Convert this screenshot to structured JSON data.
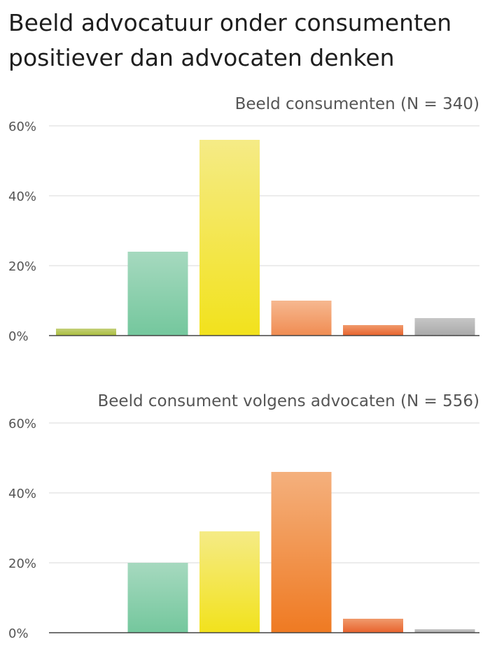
{
  "title": "Beeld advocatuur onder consumenten positiever dan advocaten denken",
  "chart_data": [
    {
      "type": "bar",
      "title": "Beeld consumenten (N = 340)",
      "ylim": [
        0,
        60
      ],
      "yticks": [
        "0%",
        "20%",
        "40%",
        "60%"
      ],
      "ytick_values": [
        0,
        20,
        40,
        60
      ],
      "values": [
        2,
        24,
        56,
        10,
        3,
        5
      ],
      "gradients": [
        [
          "#c4d07a",
          "#a9bd3c"
        ],
        [
          "#a6d9bf",
          "#74c79d"
        ],
        [
          "#f5eb86",
          "#f2e21c"
        ],
        [
          "#f6b890",
          "#f08c52"
        ],
        [
          "#f09a6c",
          "#e8622c"
        ],
        [
          "#c6c6c6",
          "#a9a9a9"
        ]
      ]
    },
    {
      "type": "bar",
      "title": "Beeld consument volgens advocaten (N = 556)",
      "ylim": [
        0,
        60
      ],
      "yticks": [
        "0%",
        "20%",
        "40%",
        "60%"
      ],
      "ytick_values": [
        0,
        20,
        40,
        60
      ],
      "values": [
        0,
        20,
        29,
        46,
        4,
        1
      ],
      "gradients": [
        [
          "#c4d07a",
          "#a9bd3c"
        ],
        [
          "#a6d9bf",
          "#74c79d"
        ],
        [
          "#f5eb86",
          "#f2e21c"
        ],
        [
          "#f4b07d",
          "#ef7a22"
        ],
        [
          "#f09a6c",
          "#e8622c"
        ],
        [
          "#c6c6c6",
          "#a9a9a9"
        ]
      ]
    }
  ]
}
